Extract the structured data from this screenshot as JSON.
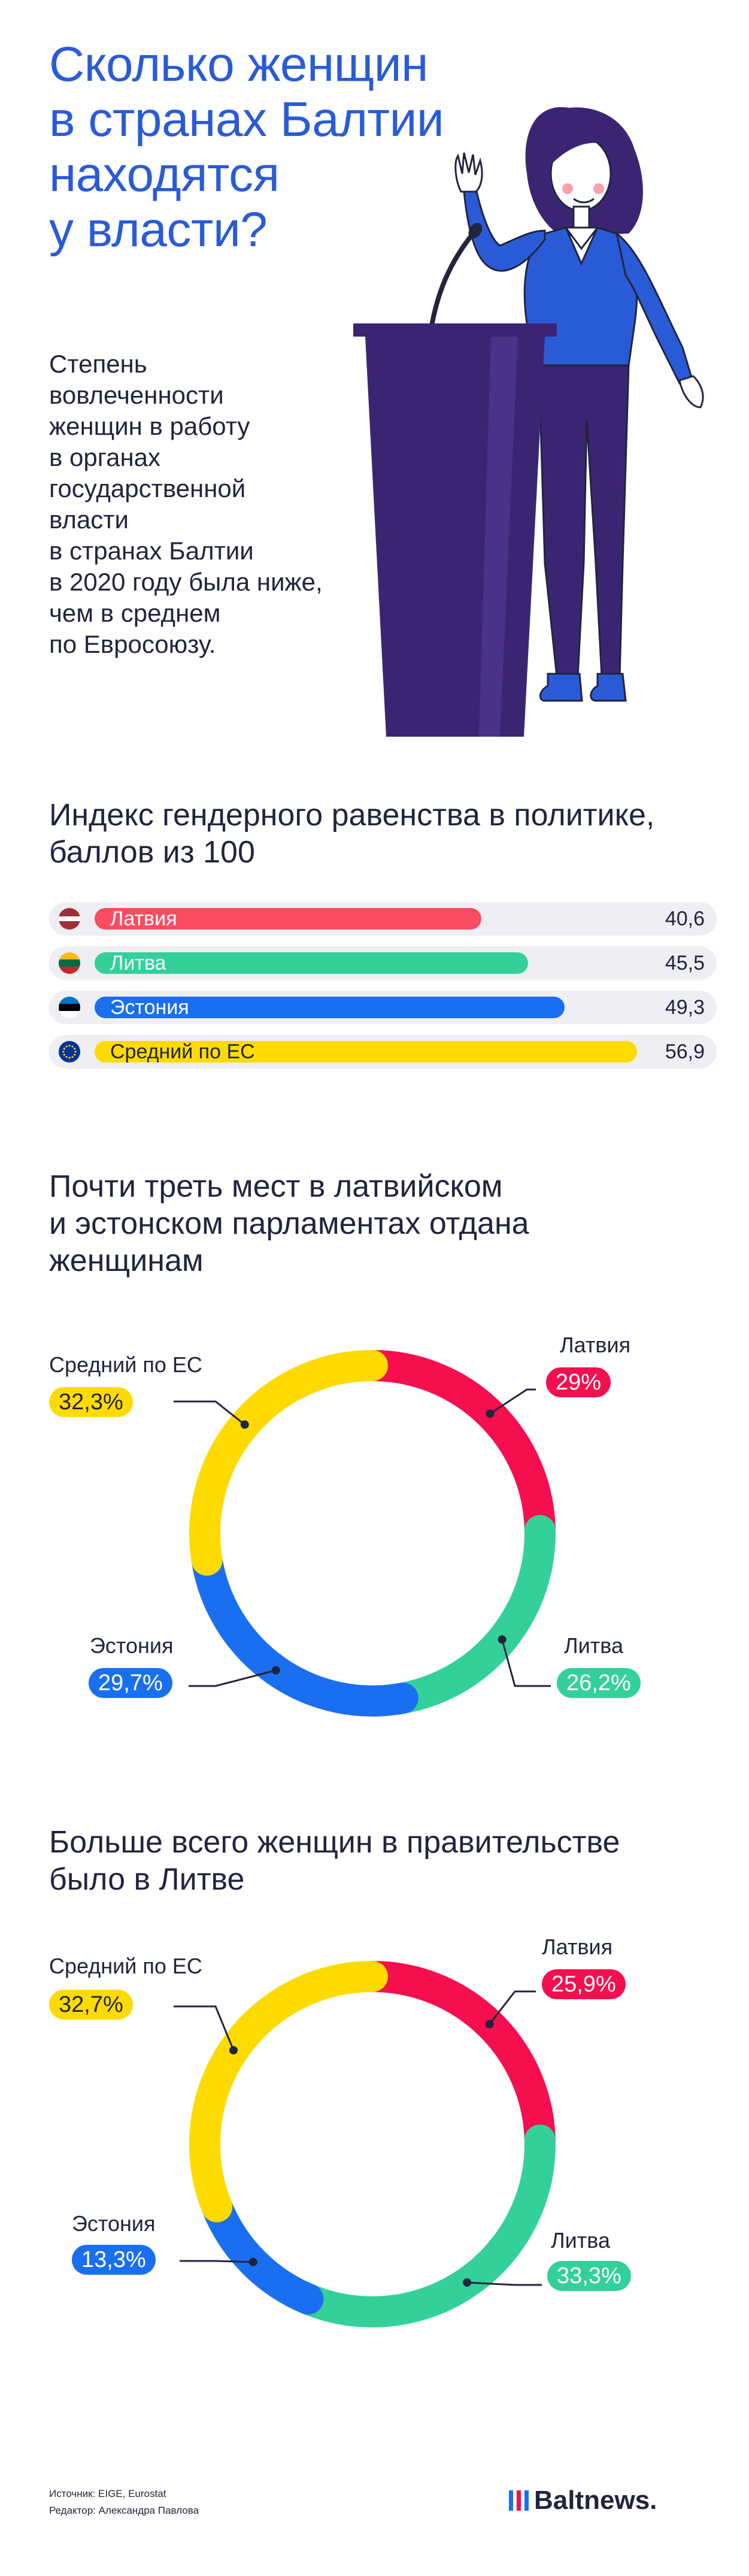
{
  "header": {
    "title_lines": [
      "Сколько женщин",
      "в странах Балтии",
      "находятся",
      "у власти?"
    ],
    "lead_lines": [
      "Степень",
      "вовлеченности",
      "женщин в работу",
      "в органах",
      "государственной",
      "власти",
      "в странах Балтии",
      "в 2020 году была ниже,",
      "чем в среднем",
      "по Евросоюзу."
    ]
  },
  "colors": {
    "latvia": "#fa4d62",
    "lithuania": "#33d199",
    "estonia": "#1a6ff0",
    "eu": "#fedb00",
    "latvia_ring": "#f50f4f",
    "title_blue": "#2a5bd7"
  },
  "chart_data": [
    {
      "type": "bar",
      "title_lines": [
        "Индекс гендерного равенства в политике,",
        "баллов из 100"
      ],
      "categories": [
        "Латвия",
        "Литва",
        "Эстония",
        "Средний по ЕС"
      ],
      "values": [
        40.6,
        45.5,
        49.3,
        56.9
      ],
      "value_labels": [
        "40,6",
        "45,5",
        "49,3",
        "56,9"
      ],
      "ylim": [
        0,
        60
      ]
    },
    {
      "type": "pie",
      "title_lines": [
        "Почти треть мест в латвийском",
        "и эстонском парламентах отдана",
        "женщинам"
      ],
      "categories": [
        "Латвия",
        "Литва",
        "Эстония",
        "Средний по ЕС"
      ],
      "values": [
        29.0,
        26.2,
        29.7,
        32.3
      ],
      "value_labels": [
        "29%",
        "26,2%",
        "29,7%",
        "32,3%"
      ]
    },
    {
      "type": "pie",
      "title_lines": [
        "Больше всего женщин в правительстве",
        "было в Литве"
      ],
      "categories": [
        "Латвия",
        "Литва",
        "Эстония",
        "Средний по ЕС"
      ],
      "values": [
        25.9,
        33.3,
        13.3,
        32.7
      ],
      "value_labels": [
        "25,9%",
        "33,3%",
        "13,3%",
        "32,7%"
      ]
    }
  ],
  "footer": {
    "source": "Источник: EIGE, Eurostat",
    "editor": "Редактор: Александра Павлова",
    "logo": "Baltnews."
  }
}
